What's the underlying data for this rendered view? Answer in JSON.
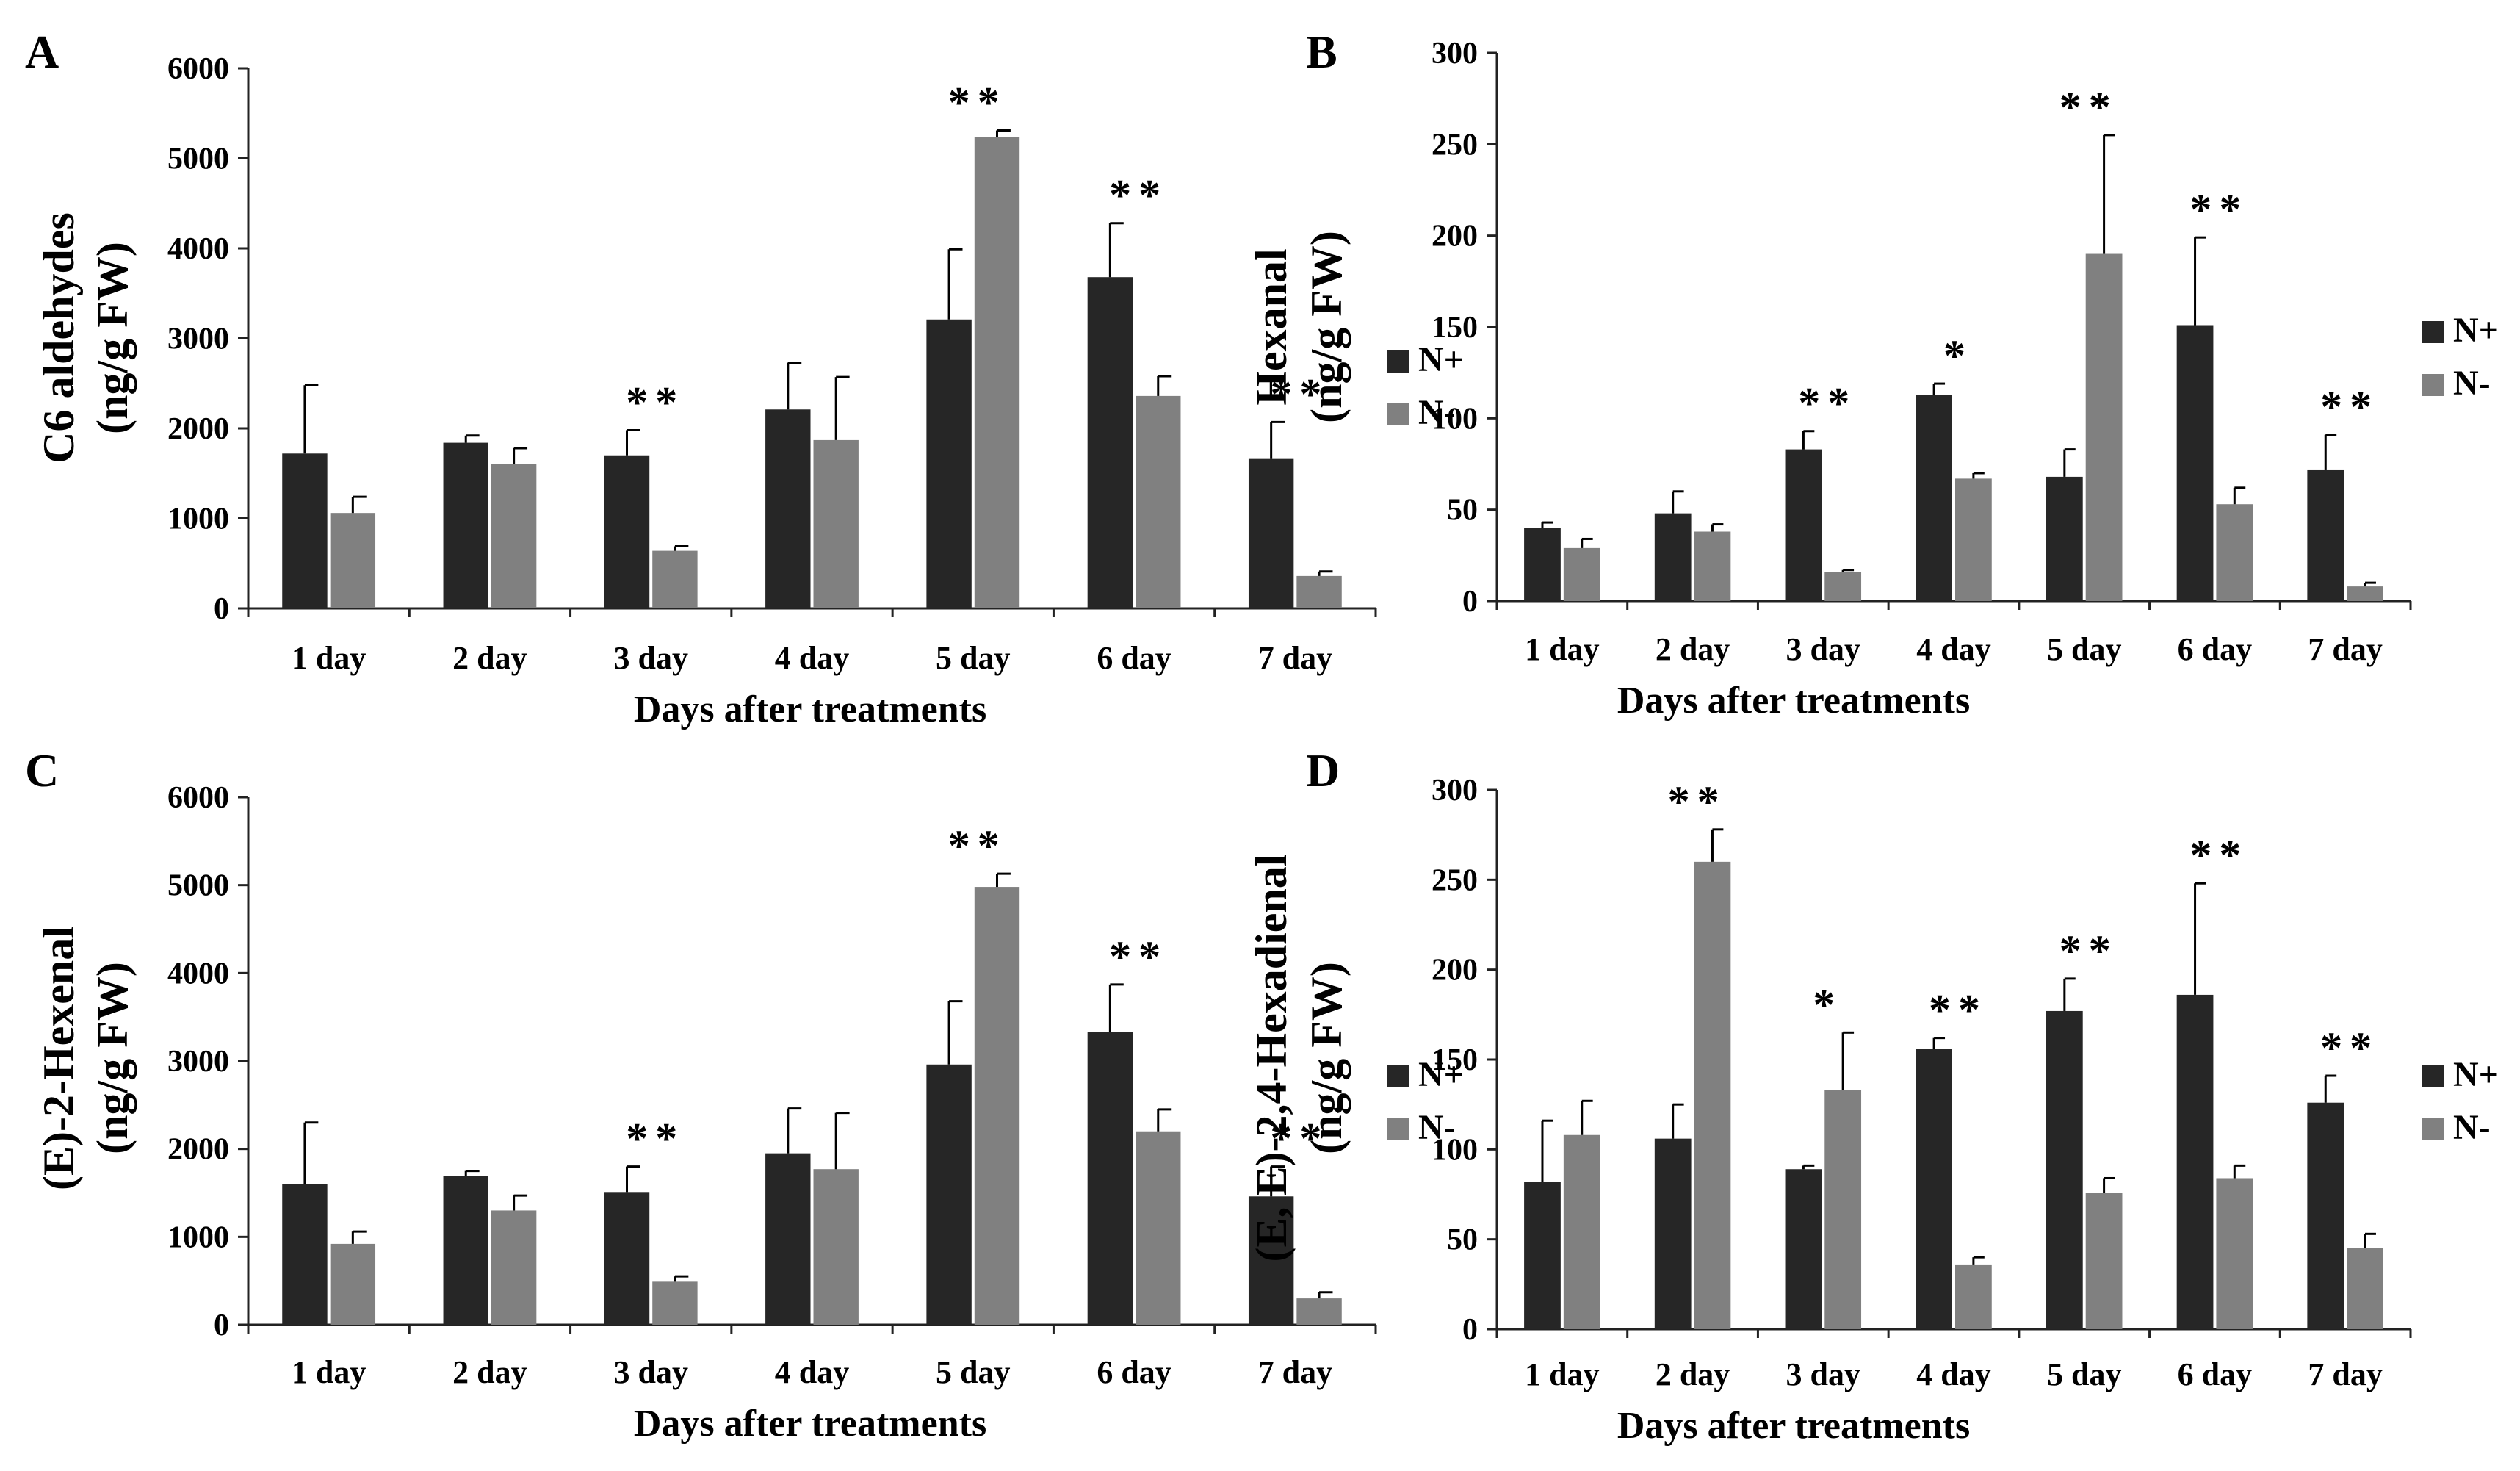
{
  "panels": [
    {
      "letter": "A",
      "ylabel_line1": "C6  aldehydes",
      "ylabel_line2": "(ng/g FW)",
      "xlabel": "Days after treatments"
    },
    {
      "letter": "B",
      "ylabel_line1": "Hexanal",
      "ylabel_line2": "(ng/g FW)",
      "xlabel": "Days after treatments"
    },
    {
      "letter": "C",
      "ylabel_line1": "(E)-2-Hexenal",
      "ylabel_line2": "(ng/g FW)",
      "xlabel": "Days after treatments"
    },
    {
      "letter": "D",
      "ylabel_line1": "(E, E)-2,4-Hexadienal",
      "ylabel_line2": "(ng/g FW)",
      "xlabel": "Days after treatments"
    }
  ],
  "colors": {
    "n_plus": "#262626",
    "n_minus": "#808080",
    "axis": "#222222"
  },
  "chart_data": [
    {
      "type": "bar",
      "title": "",
      "xlabel": "Days after treatments",
      "ylabel": "C6  aldehydes (ng/g FW)",
      "categories": [
        "1 day",
        "2 day",
        "3 day",
        "4 day",
        "5 day",
        "6 day",
        "7 day"
      ],
      "yticks": [
        0,
        1000,
        2000,
        3000,
        4000,
        5000,
        6000
      ],
      "ylim": [
        0,
        6000
      ],
      "legend_position": "right",
      "series": [
        {
          "name": "N+",
          "values": [
            1720,
            1840,
            1700,
            2210,
            3210,
            3680,
            1660
          ],
          "errors": [
            760,
            80,
            280,
            520,
            780,
            600,
            410
          ]
        },
        {
          "name": "N-",
          "values": [
            1060,
            1600,
            640,
            1870,
            5240,
            2360,
            360
          ],
          "errors": [
            180,
            180,
            50,
            700,
            70,
            220,
            50
          ]
        }
      ],
      "significance": [
        "",
        "",
        "**",
        "",
        "**",
        "**",
        "**"
      ]
    },
    {
      "type": "bar",
      "title": "",
      "xlabel": "Days after treatments",
      "ylabel": "Hexanal (ng/g FW)",
      "categories": [
        "1 day",
        "2 day",
        "3 day",
        "4 day",
        "5 day",
        "6 day",
        "7 day"
      ],
      "yticks": [
        0,
        50,
        100,
        150,
        200,
        250,
        300
      ],
      "ylim": [
        0,
        300
      ],
      "legend_position": "right",
      "series": [
        {
          "name": "N+",
          "values": [
            40,
            48,
            83,
            113,
            68,
            151,
            72
          ],
          "errors": [
            3,
            12,
            10,
            6,
            15,
            48,
            19
          ]
        },
        {
          "name": "N-",
          "values": [
            29,
            38,
            16,
            67,
            190,
            53,
            8
          ],
          "errors": [
            5,
            4,
            1,
            3,
            65,
            9,
            2
          ]
        }
      ],
      "significance": [
        "",
        "",
        "**",
        "*",
        "**",
        "**",
        "**"
      ]
    },
    {
      "type": "bar",
      "title": "",
      "xlabel": "Days after treatments",
      "ylabel": "(E)-2-Hexenal (ng/g FW)",
      "categories": [
        "1 day",
        "2 day",
        "3 day",
        "4 day",
        "5 day",
        "6 day",
        "7 day"
      ],
      "yticks": [
        0,
        1000,
        2000,
        3000,
        4000,
        5000,
        6000
      ],
      "ylim": [
        0,
        6000
      ],
      "legend_position": "right",
      "series": [
        {
          "name": "N+",
          "values": [
            1600,
            1690,
            1510,
            1950,
            2960,
            3330,
            1460
          ],
          "errors": [
            700,
            60,
            290,
            510,
            720,
            540,
            340
          ]
        },
        {
          "name": "N-",
          "values": [
            920,
            1300,
            490,
            1770,
            4980,
            2200,
            300
          ],
          "errors": [
            140,
            170,
            60,
            640,
            150,
            250,
            70
          ]
        }
      ],
      "significance": [
        "",
        "",
        "**",
        "",
        "**",
        "**",
        "**"
      ]
    },
    {
      "type": "bar",
      "title": "",
      "xlabel": "Days after treatments",
      "ylabel": "(E, E)-2,4-Hexadienal (ng/g FW)",
      "categories": [
        "1 day",
        "2 day",
        "3 day",
        "4 day",
        "5 day",
        "6 day",
        "7 day"
      ],
      "yticks": [
        0,
        50,
        100,
        150,
        200,
        250,
        300
      ],
      "ylim": [
        0,
        300
      ],
      "legend_position": "right",
      "series": [
        {
          "name": "N+",
          "values": [
            82,
            106,
            89,
            156,
            177,
            186,
            126
          ],
          "errors": [
            34,
            19,
            2,
            6,
            18,
            62,
            15
          ]
        },
        {
          "name": "N-",
          "values": [
            108,
            260,
            133,
            36,
            76,
            84,
            45
          ],
          "errors": [
            19,
            18,
            32,
            4,
            8,
            7,
            8
          ]
        }
      ],
      "significance": [
        "",
        "**",
        "*",
        "**",
        "**",
        "**",
        "**"
      ]
    }
  ]
}
